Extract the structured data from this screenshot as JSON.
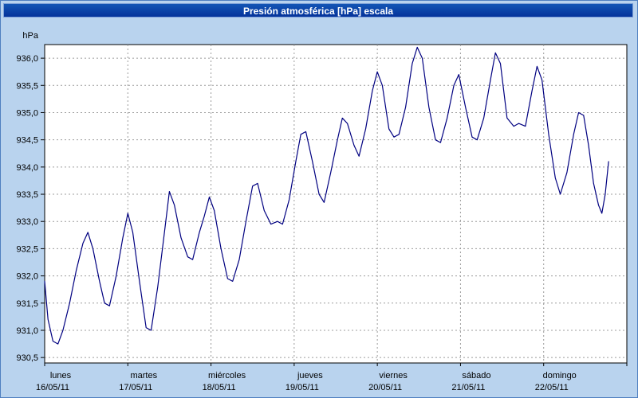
{
  "title": "Presión atmosférica [hPa] escala",
  "colors": {
    "titlebar": "#05339b",
    "background": "#b9d3ee",
    "line": "#000080",
    "grid": "#9c9c9c",
    "plot_border": "#000000"
  },
  "y_axis": {
    "unit": "hPa",
    "ticks": [
      {
        "label": "936,0",
        "value": 936.0
      },
      {
        "label": "935,5",
        "value": 935.5
      },
      {
        "label": "935,0",
        "value": 935.0
      },
      {
        "label": "934,5",
        "value": 934.5
      },
      {
        "label": "934,0",
        "value": 934.0
      },
      {
        "label": "933,5",
        "value": 933.5
      },
      {
        "label": "933,0",
        "value": 933.0
      },
      {
        "label": "932,5",
        "value": 932.5
      },
      {
        "label": "932,0",
        "value": 932.0
      },
      {
        "label": "931,5",
        "value": 931.5
      },
      {
        "label": "931,0",
        "value": 931.0
      },
      {
        "label": "930,5",
        "value": 930.5
      }
    ]
  },
  "x_axis": {
    "days": [
      {
        "name": "lunes",
        "date": "16/05/11"
      },
      {
        "name": "martes",
        "date": "17/05/11"
      },
      {
        "name": "miércoles",
        "date": "18/05/11"
      },
      {
        "name": "jueves",
        "date": "19/05/11"
      },
      {
        "name": "viernes",
        "date": "20/05/11"
      },
      {
        "name": "sábado",
        "date": "21/05/11"
      },
      {
        "name": "domingo",
        "date": "22/05/11"
      }
    ]
  },
  "chart_data": {
    "type": "line",
    "title": "Presión atmosférica [hPa] escala",
    "ylabel": "hPa",
    "ylim": [
      930.5,
      936.0
    ],
    "y_step": 0.5,
    "grid": true,
    "x_unit": "days",
    "categories": [
      "lunes 16/05/11",
      "martes 17/05/11",
      "miércoles 18/05/11",
      "jueves 19/05/11",
      "viernes 20/05/11",
      "sábado 21/05/11",
      "domingo 22/05/11"
    ],
    "points": [
      [
        0.0,
        931.9
      ],
      [
        0.04,
        931.2
      ],
      [
        0.1,
        930.8
      ],
      [
        0.16,
        930.75
      ],
      [
        0.22,
        931.0
      ],
      [
        0.3,
        931.5
      ],
      [
        0.38,
        932.1
      ],
      [
        0.46,
        932.6
      ],
      [
        0.52,
        932.8
      ],
      [
        0.58,
        932.5
      ],
      [
        0.66,
        931.9
      ],
      [
        0.72,
        931.5
      ],
      [
        0.78,
        931.45
      ],
      [
        0.86,
        932.0
      ],
      [
        0.94,
        932.7
      ],
      [
        1.0,
        933.15
      ],
      [
        1.06,
        932.8
      ],
      [
        1.14,
        931.9
      ],
      [
        1.22,
        931.05
      ],
      [
        1.28,
        931.0
      ],
      [
        1.36,
        931.8
      ],
      [
        1.44,
        932.8
      ],
      [
        1.5,
        933.55
      ],
      [
        1.56,
        933.3
      ],
      [
        1.64,
        932.7
      ],
      [
        1.72,
        932.35
      ],
      [
        1.78,
        932.3
      ],
      [
        1.86,
        932.8
      ],
      [
        1.92,
        933.1
      ],
      [
        1.98,
        933.45
      ],
      [
        2.04,
        933.2
      ],
      [
        2.12,
        932.5
      ],
      [
        2.2,
        931.95
      ],
      [
        2.26,
        931.9
      ],
      [
        2.34,
        932.3
      ],
      [
        2.42,
        933.0
      ],
      [
        2.5,
        933.65
      ],
      [
        2.56,
        933.7
      ],
      [
        2.64,
        933.2
      ],
      [
        2.72,
        932.95
      ],
      [
        2.8,
        933.0
      ],
      [
        2.86,
        932.95
      ],
      [
        2.94,
        933.4
      ],
      [
        3.02,
        934.1
      ],
      [
        3.08,
        934.6
      ],
      [
        3.14,
        934.65
      ],
      [
        3.22,
        934.1
      ],
      [
        3.3,
        933.5
      ],
      [
        3.36,
        933.35
      ],
      [
        3.44,
        933.9
      ],
      [
        3.52,
        934.5
      ],
      [
        3.58,
        934.9
      ],
      [
        3.64,
        934.8
      ],
      [
        3.72,
        934.4
      ],
      [
        3.78,
        934.2
      ],
      [
        3.86,
        934.7
      ],
      [
        3.94,
        935.4
      ],
      [
        4.0,
        935.75
      ],
      [
        4.06,
        935.5
      ],
      [
        4.14,
        934.7
      ],
      [
        4.2,
        934.55
      ],
      [
        4.26,
        934.6
      ],
      [
        4.34,
        935.1
      ],
      [
        4.42,
        935.9
      ],
      [
        4.48,
        936.2
      ],
      [
        4.54,
        936.0
      ],
      [
        4.62,
        935.1
      ],
      [
        4.7,
        934.5
      ],
      [
        4.76,
        934.45
      ],
      [
        4.84,
        934.9
      ],
      [
        4.92,
        935.5
      ],
      [
        4.98,
        935.7
      ],
      [
        5.06,
        935.1
      ],
      [
        5.14,
        934.55
      ],
      [
        5.2,
        934.5
      ],
      [
        5.28,
        934.9
      ],
      [
        5.36,
        935.6
      ],
      [
        5.42,
        936.1
      ],
      [
        5.48,
        935.9
      ],
      [
        5.56,
        934.9
      ],
      [
        5.64,
        934.75
      ],
      [
        5.7,
        934.8
      ],
      [
        5.78,
        934.75
      ],
      [
        5.86,
        935.4
      ],
      [
        5.92,
        935.85
      ],
      [
        5.98,
        935.6
      ],
      [
        6.06,
        934.6
      ],
      [
        6.14,
        933.8
      ],
      [
        6.2,
        933.5
      ],
      [
        6.28,
        933.9
      ],
      [
        6.36,
        934.6
      ],
      [
        6.42,
        935.0
      ],
      [
        6.48,
        934.95
      ],
      [
        6.54,
        934.4
      ],
      [
        6.6,
        933.7
      ],
      [
        6.66,
        933.3
      ],
      [
        6.7,
        933.15
      ],
      [
        6.74,
        933.5
      ],
      [
        6.78,
        934.1
      ]
    ]
  }
}
